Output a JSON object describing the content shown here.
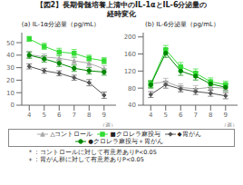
{
  "title": [
    "【図2】長期骨髄培養上清中のIL-1αとIL-6分泌量の",
    "経時変化"
  ],
  "annotations": [
    "＊：コントロールに対して有意差ありP<0.05",
    "＋：胃がん群に対して有意差ありP<0.05"
  ],
  "chart_data": [
    {
      "type": "line",
      "title": "(a) IL-1α分泌量（pg/mL）",
      "x_label": "（週）",
      "x": [
        4,
        5,
        6,
        7,
        8,
        9
      ],
      "xlim": [
        3.5,
        9.8
      ],
      "xticks": [
        4,
        5,
        6,
        7,
        8,
        9
      ],
      "ylim": [
        0,
        58
      ],
      "yticks": [
        0,
        10,
        20,
        30,
        40,
        50
      ],
      "grid": false,
      "series": [
        {
          "name": "△コントロール",
          "color": "#aaaaaa",
          "marker": "triangle",
          "values": [
            40.5,
            38.5,
            37.5,
            35.5,
            33.5,
            29.0
          ],
          "errors": [
            2.5,
            2.5,
            2.5,
            2.5,
            2.5,
            2.5
          ]
        },
        {
          "name": "■クロレラ麻投与",
          "color": "#33dd33",
          "marker": "square",
          "values": [
            53.0,
            47.0,
            42.5,
            41.5,
            37.5,
            35.5
          ],
          "errors": [
            2.0,
            2.5,
            3.0,
            3.0,
            2.5,
            2.5
          ]
        },
        {
          "name": "◆胃がん",
          "color": "#555555",
          "marker": "diamond",
          "values": [
            31.0,
            27.5,
            25.5,
            22.0,
            18.0,
            8.0
          ],
          "errors": [
            2.0,
            2.0,
            2.0,
            2.0,
            2.5,
            2.5
          ]
        },
        {
          "name": "●クロレラ麻投与＋胃がん",
          "color": "#008800",
          "marker": "circle",
          "values": [
            40.0,
            37.0,
            33.5,
            29.5,
            27.5,
            26.5
          ],
          "errors": [
            2.5,
            2.5,
            2.5,
            2.5,
            2.5,
            2.5
          ]
        }
      ]
    },
    {
      "type": "line",
      "title": "(b) IL-6分泌量（pg/mL）",
      "x_label": "（週）",
      "x": [
        4,
        5,
        6,
        7,
        8,
        9
      ],
      "xlim": [
        3.5,
        9.8
      ],
      "xticks": [
        4,
        5,
        6,
        7,
        8,
        9
      ],
      "ylim": [
        40,
        210
      ],
      "yticks": [
        40,
        80,
        120,
        160,
        200
      ],
      "grid": false,
      "series": [
        {
          "name": "△コントロール",
          "color": "#aaaaaa",
          "marker": "triangle",
          "values": [
            90.0,
            95.0,
            82.0,
            78.0,
            82.0,
            80.0
          ],
          "errors": [
            8.0,
            8.0,
            8.0,
            8.0,
            8.0,
            8.0
          ]
        },
        {
          "name": "■クロレラ麻投与",
          "color": "#33dd33",
          "marker": "square",
          "values": [
            90.0,
            170.0,
            130.0,
            115.0,
            95.0,
            88.0
          ],
          "errors": [
            8.0,
            10.0,
            10.0,
            10.0,
            9.0,
            8.0
          ]
        },
        {
          "name": "◆胃がん",
          "color": "#555555",
          "marker": "diamond",
          "values": [
            65.0,
            88.0,
            78.0,
            72.0,
            68.0,
            62.0
          ],
          "errors": [
            7.0,
            8.0,
            7.0,
            7.0,
            7.0,
            7.0
          ]
        },
        {
          "name": "●クロレラ麻投与＋胃がん",
          "color": "#008800",
          "marker": "circle",
          "values": [
            88.0,
            162.0,
            120.0,
            108.0,
            90.0,
            82.0
          ],
          "errors": [
            8.0,
            10.0,
            10.0,
            9.0,
            8.0,
            8.0
          ]
        }
      ]
    }
  ]
}
